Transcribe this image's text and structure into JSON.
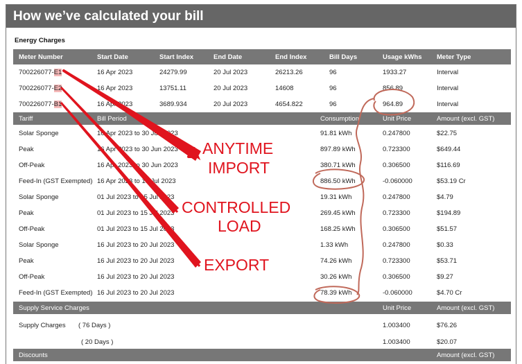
{
  "page_title": "How we’ve calculated your bill",
  "energy_section_label": "Energy Charges",
  "meter_headers": [
    "Meter Number",
    "Start Date",
    "Start Index",
    "End Date",
    "End Index",
    "Bill Days",
    "Usage kWhs",
    "Meter Type"
  ],
  "meters": [
    {
      "id_prefix": "700226077-",
      "id_suffix": "E1",
      "start_date": "16 Apr 2023",
      "start_index": "24279.99",
      "end_date": "20 Jul 2023",
      "end_index": "26213.26",
      "bill_days": "96",
      "usage": "1933.27",
      "type": "Interval"
    },
    {
      "id_prefix": "700226077-",
      "id_suffix": "E2",
      "start_date": "16 Apr 2023",
      "start_index": "13751.11",
      "end_date": "20 Jul 2023",
      "end_index": "14608",
      "bill_days": "96",
      "usage": "856.89",
      "type": "Interval"
    },
    {
      "id_prefix": "700226077-",
      "id_suffix": "B1",
      "start_date": "16 Apr 2023",
      "start_index": "3689.934",
      "end_date": "20 Jul 2023",
      "end_index": "4654.822",
      "bill_days": "96",
      "usage": "964.89",
      "type": "Interval"
    }
  ],
  "tariff_headers": [
    "Tariff",
    "Bill Period",
    "Consumption",
    "Unit Price",
    "Amount (excl. GST)"
  ],
  "tariffs": [
    {
      "tariff": "Solar Sponge",
      "period": "16 Apr 2023 to 30 Jun 2023",
      "consumption": "91.81 kWh",
      "unit_price": "0.247800",
      "amount": "$22.75"
    },
    {
      "tariff": "Peak",
      "period": "16 Apr 2023 to 30 Jun 2023",
      "consumption": "897.89 kWh",
      "unit_price": "0.723300",
      "amount": "$649.44"
    },
    {
      "tariff": "Off-Peak",
      "period": "16 Apr 2023 to 30 Jun 2023",
      "consumption": "380.71 kWh",
      "unit_price": "0.306500",
      "amount": "$116.69"
    },
    {
      "tariff": "Feed-In (GST Exempted)",
      "period": "16 Apr 2023 to 15 Jul 2023",
      "consumption": "886.50 kWh",
      "unit_price": "-0.060000",
      "amount": "$53.19 Cr"
    },
    {
      "tariff": "Solar Sponge",
      "period": "01 Jul 2023 to 15 Jul 2023",
      "consumption": "19.31 kWh",
      "unit_price": "0.247800",
      "amount": "$4.79"
    },
    {
      "tariff": "Peak",
      "period": "01 Jul 2023 to 15 Jul 2023",
      "consumption": "269.45 kWh",
      "unit_price": "0.723300",
      "amount": "$194.89"
    },
    {
      "tariff": "Off-Peak",
      "period": "01 Jul 2023 to 15 Jul 2023",
      "consumption": "168.25 kWh",
      "unit_price": "0.306500",
      "amount": "$51.57"
    },
    {
      "tariff": "Solar Sponge",
      "period": "16 Jul 2023 to 20 Jul 2023",
      "consumption": "1.33 kWh",
      "unit_price": "0.247800",
      "amount": "$0.33"
    },
    {
      "tariff": "Peak",
      "period": "16 Jul 2023 to 20 Jul 2023",
      "consumption": "74.26 kWh",
      "unit_price": "0.723300",
      "amount": "$53.71"
    },
    {
      "tariff": "Off-Peak",
      "period": "16 Jul 2023 to 20 Jul 2023",
      "consumption": "30.26 kWh",
      "unit_price": "0.306500",
      "amount": "$9.27"
    },
    {
      "tariff": "Feed-In (GST Exempted)",
      "period": "16 Jul 2023 to 20 Jul 2023",
      "consumption": "78.39 kWh",
      "unit_price": "-0.060000",
      "amount": "$4.70 Cr"
    }
  ],
  "supply": {
    "header": "Supply Service Charges",
    "unit_price_header": "Unit Price",
    "amount_header": "Amount (excl. GST)",
    "rows": [
      {
        "label": "Supply Charges",
        "days": "( 76 Days )",
        "unit_price": "1.003400",
        "amount": "$76.26"
      },
      {
        "label": "",
        "days": "( 20 Days )",
        "unit_price": "1.003400",
        "amount": "$20.07"
      }
    ]
  },
  "discounts": {
    "header": "Discounts",
    "amount_header": "Amount (excl. GST)"
  },
  "annotations": {
    "anytime_1": "ANYTIME",
    "anytime_2": "IMPORT",
    "controlled_1": "CONTROLLED",
    "controlled_2": "LOAD",
    "export": "EXPORT"
  },
  "colors": {
    "header_band": "#777777",
    "title_bar": "#666666",
    "annotation_red": "#e0141e",
    "circle_brown": "#c0695a",
    "highlight_pink": "#f6b8b8"
  }
}
